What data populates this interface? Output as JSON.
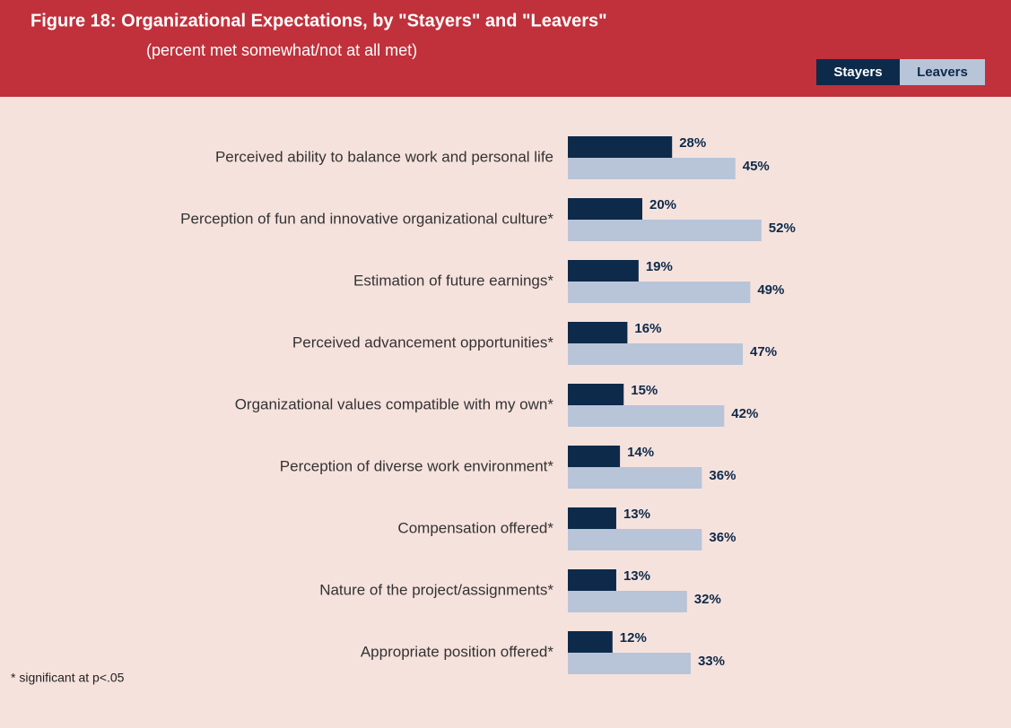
{
  "chart_data": {
    "type": "hbar",
    "title": "Figure 18: Organizational Expectations, by \"Stayers\" and \"Leavers\"",
    "subtitle": "(percent met somewhat/not at all met)",
    "categories": [
      "Perceived ability to balance work and personal life",
      "Perception of fun and innovative organizational culture*",
      "Estimation of future earnings*",
      "Perceived advancement opportunities*",
      "Organizational values compatible with my own*",
      "Perception of diverse work environment*",
      "Compensation offered*",
      "Nature of the project/assignments*",
      "Appropriate position offered*"
    ],
    "series": [
      {
        "name": "Stayers",
        "color": "#0d2a4a",
        "values": [
          28,
          20,
          19,
          16,
          15,
          14,
          13,
          13,
          12
        ],
        "value_labels": [
          "28%",
          "20%",
          "19%",
          "16%",
          "15%",
          "14%",
          "13%",
          "13%",
          "12%"
        ]
      },
      {
        "name": "Leavers",
        "color": "#b8c4d8",
        "values": [
          45,
          52,
          49,
          47,
          42,
          36,
          36,
          32,
          33
        ],
        "value_labels": [
          "45%",
          "52%",
          "49%",
          "47%",
          "42%",
          "36%",
          "36%",
          "32%",
          "33%"
        ]
      }
    ],
    "footnote": "* significant at p<.05"
  }
}
